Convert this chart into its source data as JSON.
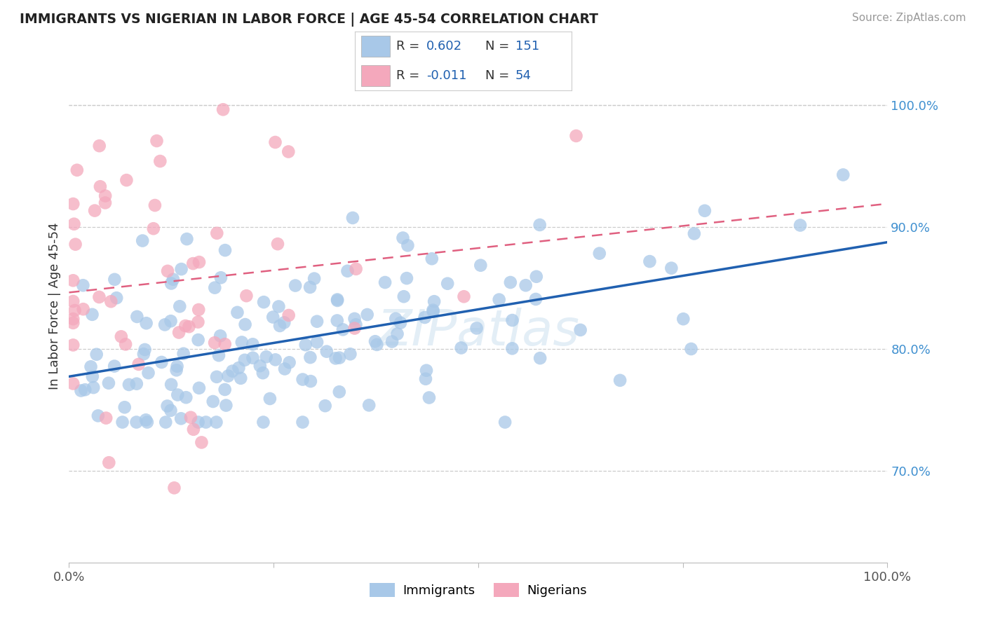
{
  "title": "IMMIGRANTS VS NIGERIAN IN LABOR FORCE | AGE 45-54 CORRELATION CHART",
  "source": "Source: ZipAtlas.com",
  "ylabel": "In Labor Force | Age 45-54",
  "legend_labels": [
    "Immigrants",
    "Nigerians"
  ],
  "blue_color": "#a8c8e8",
  "pink_color": "#f4a8bc",
  "blue_line_color": "#2060b0",
  "pink_line_color": "#e06080",
  "watermark": "ZIPatlas",
  "xlim": [
    0.0,
    1.0
  ],
  "ylim": [
    0.625,
    1.045
  ],
  "yticks": [
    0.7,
    0.8,
    0.9,
    1.0
  ],
  "ytick_labels": [
    "70.0%",
    "80.0%",
    "90.0%",
    "100.0%"
  ],
  "blue_seed": 42,
  "pink_seed": 99,
  "n_blue": 151,
  "n_pink": 54,
  "legend_r_blue": "0.602",
  "legend_n_blue": "151",
  "legend_r_pink": "-0.011",
  "legend_n_pink": "54",
  "text_color_label": "#333333",
  "text_color_value": "#2060b0",
  "ytick_color": "#4090d0"
}
